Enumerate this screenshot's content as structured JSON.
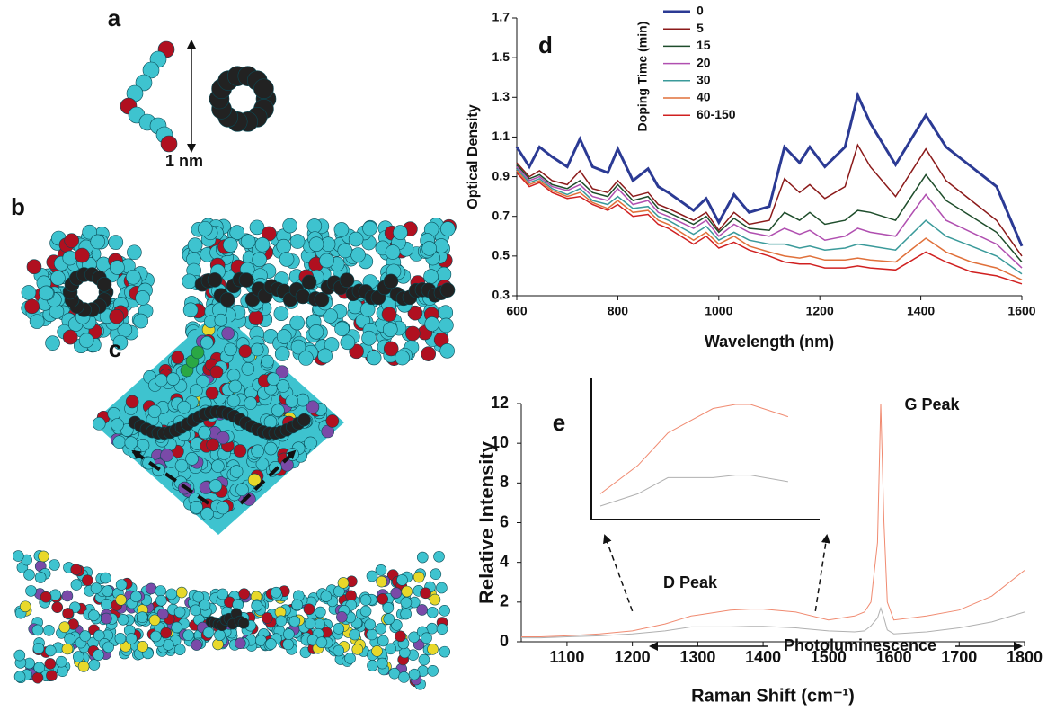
{
  "figure": {
    "panel_labels": [
      "a",
      "b",
      "c"
    ],
    "scale_label": "1 nm"
  },
  "chart_data": [
    {
      "type": "line",
      "panel_label": "d",
      "x_label": "Wavelength (nm)",
      "y_label": "Optical Density",
      "legend_title": "Doping Time (min)",
      "xlim": [
        600,
        1600
      ],
      "xticks": [
        600,
        800,
        1000,
        1200,
        1400,
        1600
      ],
      "ylim": [
        0.3,
        1.7
      ],
      "yticks": [
        0.3,
        0.5,
        0.7,
        0.9,
        1.1,
        1.3,
        1.5,
        1.7
      ],
      "x": [
        600,
        625,
        645,
        670,
        700,
        725,
        750,
        780,
        800,
        830,
        860,
        880,
        900,
        950,
        975,
        1000,
        1030,
        1060,
        1100,
        1130,
        1160,
        1180,
        1210,
        1250,
        1275,
        1300,
        1350,
        1410,
        1450,
        1500,
        1550,
        1600
      ],
      "series": [
        {
          "name": "0",
          "color": "#2b3a94",
          "values": [
            1.05,
            0.95,
            1.05,
            1.0,
            0.95,
            1.09,
            0.95,
            0.92,
            1.04,
            0.88,
            0.94,
            0.85,
            0.82,
            0.73,
            0.79,
            0.67,
            0.81,
            0.72,
            0.75,
            1.05,
            0.97,
            1.05,
            0.95,
            1.05,
            1.31,
            1.17,
            0.96,
            1.21,
            1.05,
            0.95,
            0.85,
            0.55
          ]
        },
        {
          "name": "5",
          "color": "#8b1a1a",
          "values": [
            0.97,
            0.9,
            0.93,
            0.88,
            0.86,
            0.93,
            0.84,
            0.82,
            0.88,
            0.8,
            0.82,
            0.76,
            0.74,
            0.68,
            0.72,
            0.63,
            0.72,
            0.66,
            0.68,
            0.89,
            0.82,
            0.86,
            0.79,
            0.85,
            1.06,
            0.95,
            0.8,
            1.04,
            0.88,
            0.78,
            0.68,
            0.5
          ]
        },
        {
          "name": "15",
          "color": "#1e4d2b",
          "values": [
            0.96,
            0.89,
            0.91,
            0.86,
            0.84,
            0.88,
            0.82,
            0.8,
            0.86,
            0.78,
            0.8,
            0.74,
            0.72,
            0.66,
            0.7,
            0.62,
            0.69,
            0.64,
            0.63,
            0.72,
            0.68,
            0.72,
            0.66,
            0.68,
            0.73,
            0.72,
            0.68,
            0.91,
            0.78,
            0.7,
            0.62,
            0.47
          ]
        },
        {
          "name": "20",
          "color": "#b04fb0",
          "values": [
            0.95,
            0.88,
            0.9,
            0.85,
            0.83,
            0.86,
            0.8,
            0.78,
            0.84,
            0.76,
            0.78,
            0.72,
            0.7,
            0.64,
            0.68,
            0.6,
            0.66,
            0.62,
            0.6,
            0.64,
            0.61,
            0.63,
            0.58,
            0.6,
            0.64,
            0.62,
            0.6,
            0.81,
            0.68,
            0.62,
            0.56,
            0.44
          ]
        },
        {
          "name": "30",
          "color": "#3a9a9a",
          "values": [
            0.94,
            0.87,
            0.89,
            0.84,
            0.81,
            0.84,
            0.78,
            0.76,
            0.8,
            0.74,
            0.75,
            0.7,
            0.68,
            0.61,
            0.65,
            0.58,
            0.62,
            0.58,
            0.56,
            0.56,
            0.54,
            0.55,
            0.53,
            0.54,
            0.56,
            0.55,
            0.53,
            0.68,
            0.6,
            0.55,
            0.5,
            0.41
          ]
        },
        {
          "name": "40",
          "color": "#e0703a",
          "values": [
            0.93,
            0.86,
            0.88,
            0.83,
            0.8,
            0.82,
            0.77,
            0.74,
            0.78,
            0.72,
            0.73,
            0.68,
            0.66,
            0.58,
            0.62,
            0.56,
            0.6,
            0.55,
            0.52,
            0.5,
            0.49,
            0.5,
            0.48,
            0.48,
            0.49,
            0.48,
            0.47,
            0.59,
            0.52,
            0.47,
            0.44,
            0.38
          ]
        },
        {
          "name": "60-150",
          "color": "#d02020",
          "values": [
            0.92,
            0.85,
            0.87,
            0.82,
            0.79,
            0.8,
            0.76,
            0.73,
            0.76,
            0.7,
            0.71,
            0.66,
            0.64,
            0.56,
            0.6,
            0.54,
            0.57,
            0.53,
            0.5,
            0.47,
            0.46,
            0.46,
            0.44,
            0.44,
            0.45,
            0.44,
            0.43,
            0.52,
            0.47,
            0.42,
            0.4,
            0.36
          ]
        }
      ]
    },
    {
      "type": "line",
      "panel_label": "e",
      "x_label": "Raman Shift (cm⁻¹)",
      "y_label": "Relative Intensity",
      "annotations": [
        "G Peak",
        "D Peak",
        "Photoluminescence"
      ],
      "xlim": [
        1030,
        1800
      ],
      "xticks": [
        1100,
        1200,
        1300,
        1400,
        1500,
        1600,
        1700,
        1800
      ],
      "ylim": [
        0,
        12
      ],
      "yticks": [
        0,
        2,
        4,
        6,
        8,
        10,
        12
      ],
      "inset_xlim": [
        1200,
        1480
      ],
      "x": [
        1030,
        1060,
        1100,
        1150,
        1200,
        1250,
        1290,
        1300,
        1350,
        1380,
        1400,
        1450,
        1500,
        1540,
        1555,
        1565,
        1575,
        1580,
        1585,
        1590,
        1600,
        1650,
        1700,
        1750,
        1800
      ],
      "series": [
        {
          "color": "#f08a70",
          "values": [
            0.25,
            0.25,
            0.3,
            0.4,
            0.55,
            0.9,
            1.3,
            1.35,
            1.6,
            1.65,
            1.65,
            1.5,
            1.1,
            1.3,
            1.5,
            2.0,
            5.0,
            12.0,
            6.0,
            2.0,
            1.1,
            1.3,
            1.6,
            2.3,
            3.6
          ]
        },
        {
          "color": "#b0b0b0",
          "values": [
            0.2,
            0.2,
            0.25,
            0.3,
            0.4,
            0.55,
            0.75,
            0.75,
            0.75,
            0.78,
            0.78,
            0.7,
            0.55,
            0.5,
            0.55,
            0.8,
            1.2,
            1.7,
            1.2,
            0.6,
            0.4,
            0.5,
            0.7,
            1.0,
            1.5
          ]
        }
      ]
    }
  ]
}
